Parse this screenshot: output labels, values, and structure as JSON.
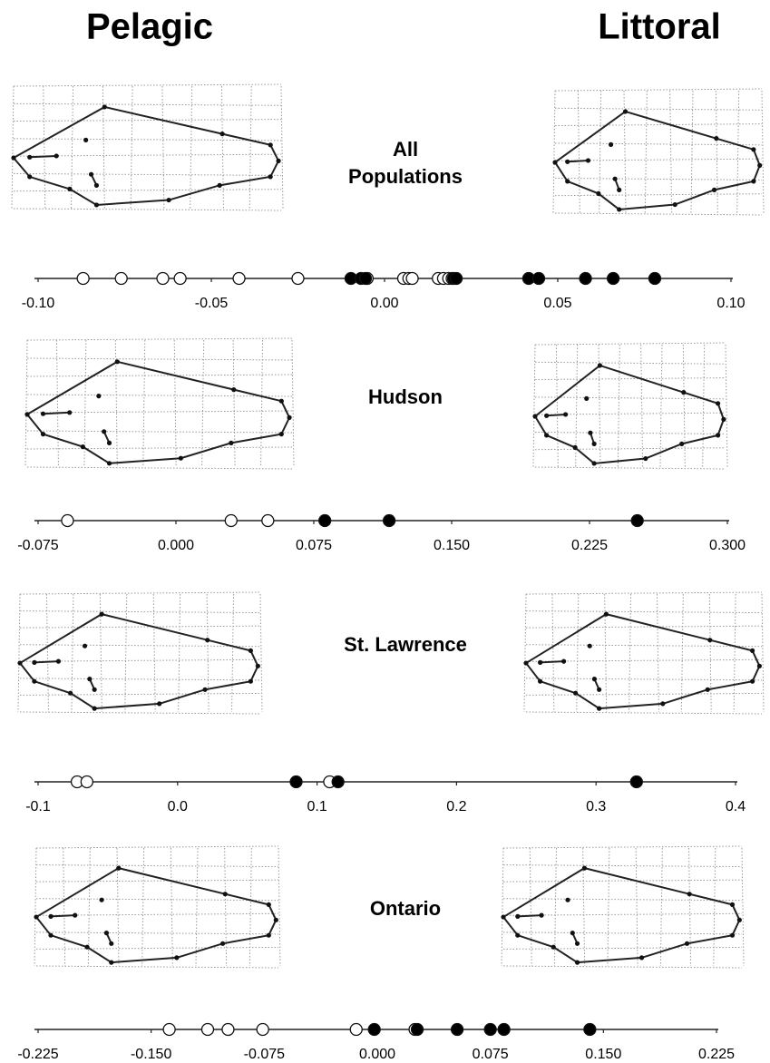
{
  "headers": {
    "left": "Pelagic",
    "right": "Littoral"
  },
  "chart_data": [
    {
      "type": "scatter",
      "label": "All Populations",
      "xlim": [
        -0.1,
        0.1
      ],
      "xticks": [
        {
          "value": -0.1,
          "label": "-0.10"
        },
        -0.05,
        {
          "value": 0,
          "label": "0.00"
        },
        0.05,
        {
          "value": 0.1,
          "label": "0.10"
        }
      ],
      "series": [
        {
          "color": "#ffffff",
          "values": [
            -0.087,
            -0.076,
            -0.064,
            -0.059,
            -0.042,
            -0.025,
            -0.005,
            0.0055,
            0.007,
            0.008,
            0.0155,
            0.017,
            0.0185,
            0.0195
          ]
        },
        {
          "color": "#000000",
          "values": [
            -0.0097,
            -0.0068,
            -0.0055,
            0.0199,
            0.0207,
            0.0416,
            0.0445,
            0.058,
            0.066,
            0.078
          ]
        }
      ]
    },
    {
      "type": "scatter",
      "label": "Hudson",
      "xlim": [
        -0.075,
        0.3
      ],
      "xticks": [
        -0.075,
        {
          "value": 0,
          "label": "0.000"
        },
        0.075,
        {
          "value": 0.15,
          "label": "0.150"
        },
        0.225,
        {
          "value": 0.3,
          "label": "0.300"
        }
      ],
      "series": [
        {
          "color": "#ffffff",
          "values": [
            -0.059,
            0.03,
            0.05
          ]
        },
        {
          "color": "#000000",
          "values": [
            0.081,
            0.116,
            0.251
          ]
        }
      ]
    },
    {
      "type": "scatter",
      "label": "St. Lawrence",
      "xlim": [
        -0.1,
        0.4
      ],
      "xticks": [
        -0.1,
        {
          "value": 0,
          "label": "0.0"
        },
        0.1,
        0.2,
        0.3,
        0.4
      ],
      "series": [
        {
          "color": "#ffffff",
          "values": [
            -0.072,
            -0.065,
            0.109
          ]
        },
        {
          "color": "#000000",
          "values": [
            0.085,
            0.115,
            0.329
          ]
        }
      ]
    },
    {
      "type": "scatter",
      "label": "Ontario",
      "xlim": [
        -0.225,
        0.225
      ],
      "xticks": [
        -0.225,
        {
          "value": -0.15,
          "label": "-0.150"
        },
        -0.075,
        {
          "value": 0,
          "label": "0.000"
        },
        0.075,
        {
          "value": 0.15,
          "label": "0.150"
        },
        0.225
      ],
      "series": [
        {
          "color": "#ffffff",
          "values": [
            -0.138,
            -0.1125,
            -0.099,
            -0.076,
            -0.014,
            0.025
          ]
        },
        {
          "color": "#000000",
          "values": [
            -0.002,
            0.0265,
            0.053,
            0.075,
            0.084,
            0.141
          ]
        }
      ]
    }
  ]
}
